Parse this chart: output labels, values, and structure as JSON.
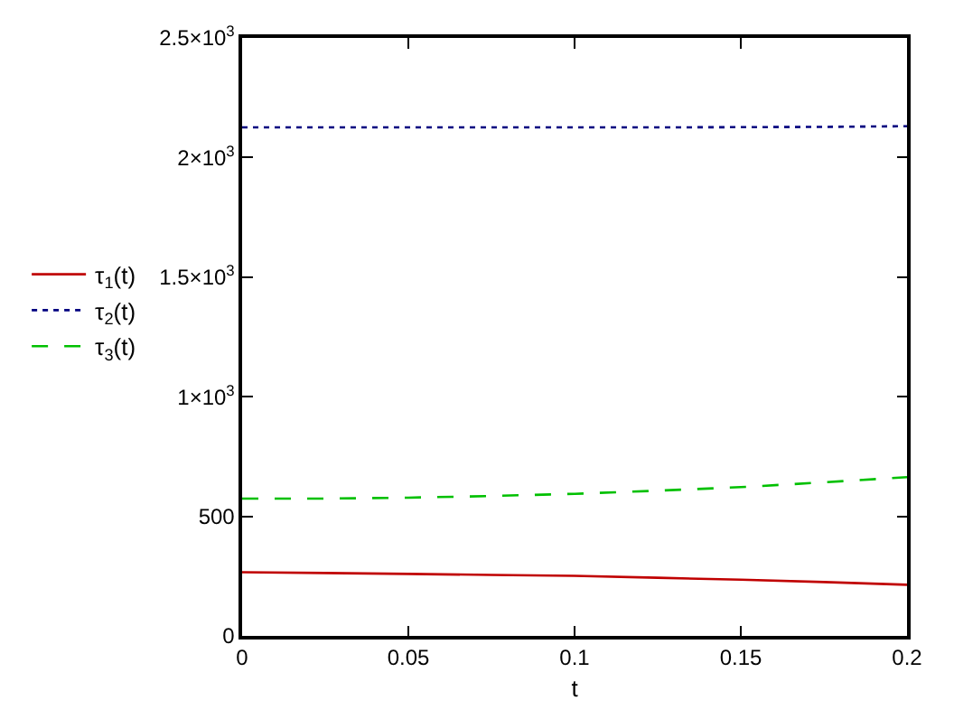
{
  "chart_data": {
    "type": "line",
    "xlabel": "t",
    "x": [
      0,
      0.025,
      0.05,
      0.075,
      0.1,
      0.125,
      0.15,
      0.175,
      0.2
    ],
    "series": [
      {
        "name": "τ$_{1}$(t)",
        "color": "#c00000",
        "line_style": "solid",
        "values": [
          266,
          263,
          259,
          255,
          251,
          243,
          235,
          225,
          214
        ]
      },
      {
        "name": "τ$_{2}$(t)",
        "color": "#000080",
        "line_style": "dotted",
        "values": [
          2126,
          2126,
          2126,
          2126,
          2126,
          2126,
          2127,
          2128,
          2131
        ]
      },
      {
        "name": "τ$_{3}$(t)",
        "color": "#00c000",
        "line_style": "dashed",
        "values": [
          574,
          574,
          578,
          585,
          594,
          607,
          622,
          642,
          664
        ]
      }
    ],
    "xlim": [
      0,
      0.2
    ],
    "xticks": [
      0,
      0.05,
      0.1,
      0.15,
      0.2
    ],
    "ylim": [
      0,
      2500
    ],
    "yticks": [
      0,
      500,
      {
        "value": 1000,
        "label": "1×10$^{3}$"
      },
      {
        "value": 1500,
        "label": "1.5×10$^{3}$"
      },
      {
        "value": 2000,
        "label": "2×10$^{3}$"
      },
      {
        "value": 2500,
        "label": "2.5×10$^{3}$"
      }
    ],
    "legend": "left",
    "marker": "none"
  }
}
